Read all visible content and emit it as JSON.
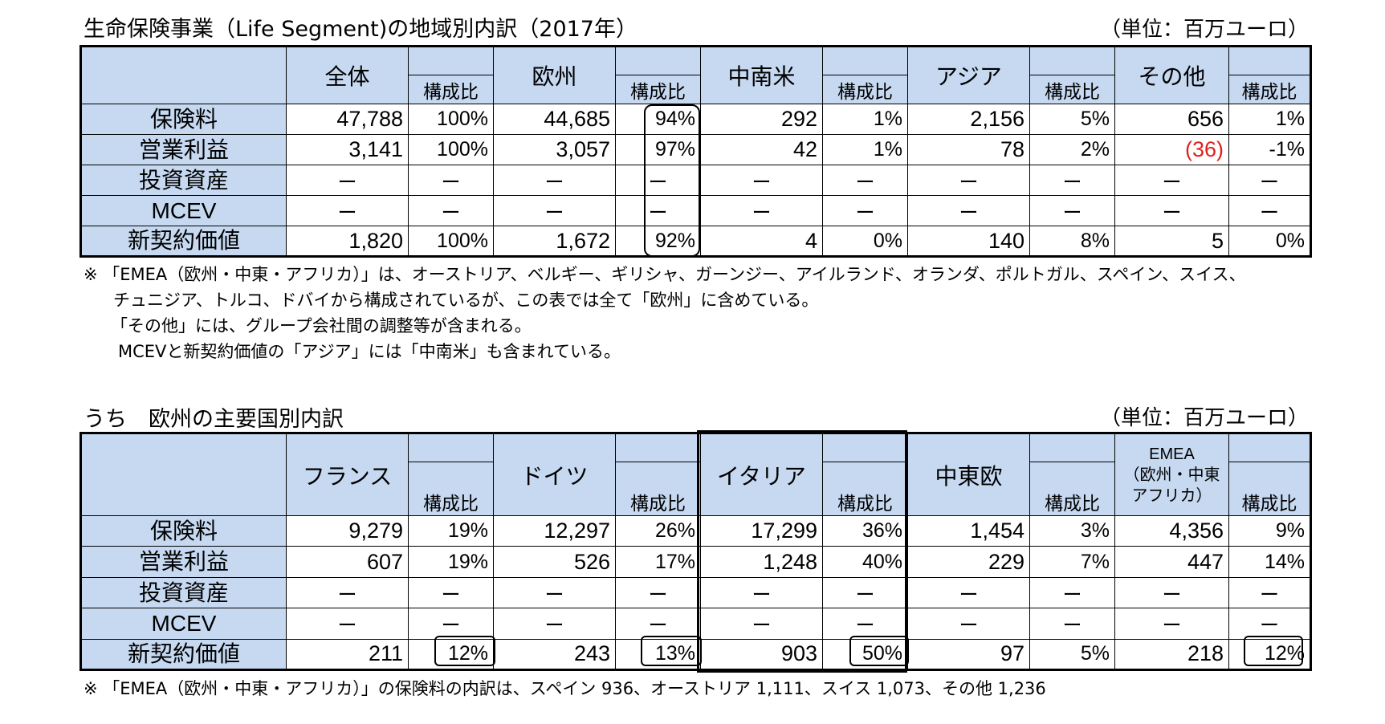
{
  "table1": {
    "title": "生命保険事業（Life Segment)の地域別内訳（2017年）",
    "unit": "（単位：百万ユーロ）",
    "regions": [
      "全体",
      "欧州",
      "中南米",
      "アジア",
      "その他"
    ],
    "share_label": "構成比",
    "rows": [
      {
        "label": "保険料",
        "cells": [
          "47,788",
          "100%",
          "44,685",
          "94%",
          "292",
          "1%",
          "2,156",
          "5%",
          "656",
          "1%"
        ]
      },
      {
        "label": "営業利益",
        "cells": [
          "3,141",
          "100%",
          "3,057",
          "97%",
          "42",
          "1%",
          "78",
          "2%",
          "(36)",
          "-1%"
        ]
      },
      {
        "label": "投資資産",
        "cells": [
          "ー",
          "ー",
          "ー",
          "ー",
          "ー",
          "ー",
          "ー",
          "ー",
          "ー",
          "ー"
        ]
      },
      {
        "label": "MCEV",
        "cells": [
          "ー",
          "ー",
          "ー",
          "ー",
          "ー",
          "ー",
          "ー",
          "ー",
          "ー",
          "ー"
        ]
      },
      {
        "label": "新契約価値",
        "cells": [
          "1,820",
          "100%",
          "1,672",
          "92%",
          "4",
          "0%",
          "140",
          "8%",
          "5",
          "0%"
        ]
      }
    ],
    "notes": [
      "※ 「EMEA（欧州・中東・アフリカ）」は、オーストリア、ベルギー、ギリシャ、ガーンジー、アイルランド、オランダ、ポルトガル、スペイン、スイス、",
      "チュニジア、トルコ、ドバイから構成されているが、この表では全て「欧州」に含めている。",
      "「その他」には、グループ会社間の調整等が含まれる。",
      "MCEVと新契約価値の「アジア」には「中南米」も含まれている。"
    ]
  },
  "table2": {
    "title": "うち　欧州の主要国別内訳",
    "unit": "（単位：百万ユーロ）",
    "regions": [
      "フランス",
      "ドイツ",
      "イタリア",
      "中東欧"
    ],
    "emea_lines": [
      "EMEA",
      "（欧州・中東",
      "アフリカ）"
    ],
    "share_label": "構成比",
    "rows": [
      {
        "label": "保険料",
        "cells": [
          "9,279",
          "19%",
          "12,297",
          "26%",
          "17,299",
          "36%",
          "1,454",
          "3%",
          "4,356",
          "9%"
        ]
      },
      {
        "label": "営業利益",
        "cells": [
          "607",
          "19%",
          "526",
          "17%",
          "1,248",
          "40%",
          "229",
          "7%",
          "447",
          "14%"
        ]
      },
      {
        "label": "投資資産",
        "cells": [
          "ー",
          "ー",
          "ー",
          "ー",
          "ー",
          "ー",
          "ー",
          "ー",
          "ー",
          "ー"
        ]
      },
      {
        "label": "MCEV",
        "cells": [
          "ー",
          "ー",
          "ー",
          "ー",
          "ー",
          "ー",
          "ー",
          "ー",
          "ー",
          "ー"
        ]
      },
      {
        "label": "新契約価値",
        "cells": [
          "211",
          "12%",
          "243",
          "13%",
          "903",
          "50%",
          "97",
          "5%",
          "218",
          "12%"
        ]
      }
    ],
    "notes": [
      "※ 「EMEA（欧州・中東・アフリカ）」の保険料の内訳は、スペイン 936、オーストリア 1,111、スイス 1,073、その他 1,236"
    ]
  },
  "colors": {
    "header_bg": "#c6d9f1",
    "negative": "#e0201b"
  }
}
